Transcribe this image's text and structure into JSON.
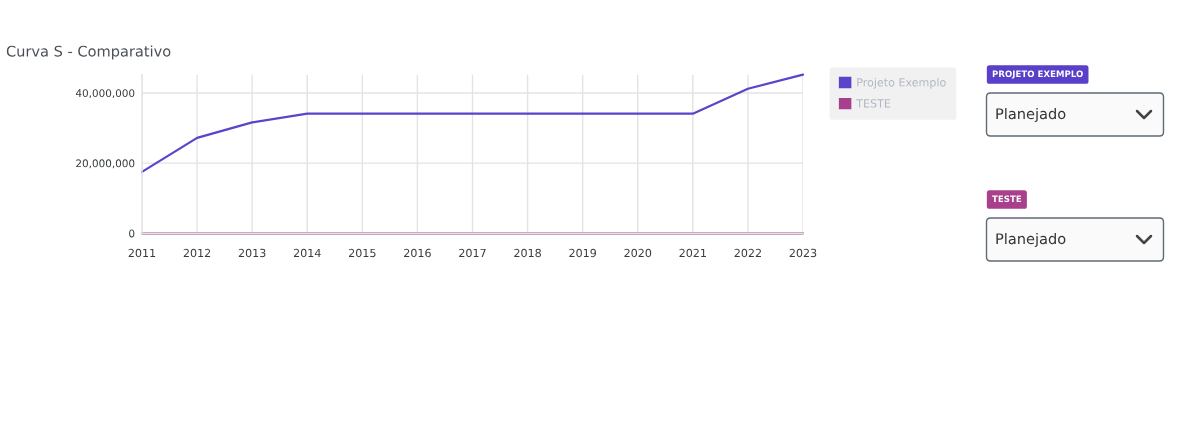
{
  "chart_data": [
    {
      "type": "line",
      "title": "Curva S - Comparativo",
      "categories": [
        "2011",
        "2012",
        "2013",
        "2014",
        "2015",
        "2016",
        "2017",
        "2018",
        "2019",
        "2020",
        "2021",
        "2022",
        "2023"
      ],
      "series": [
        {
          "name": "Projeto Exemplo",
          "color": "#5b44c9",
          "values": [
            17500000,
            27200000,
            31600000,
            34100000,
            34100000,
            34100000,
            34100000,
            34100000,
            34100000,
            34100000,
            34100000,
            41200000,
            45200000
          ]
        },
        {
          "name": "TESTE",
          "color": "#a6408e",
          "values": [
            0,
            0,
            0,
            0,
            0,
            0,
            0,
            0,
            0,
            0,
            0,
            0,
            0
          ]
        }
      ],
      "ylim": [
        0,
        45200000
      ],
      "yticks": [
        0,
        {
          "value": 20000000,
          "label": "20,000,000"
        },
        {
          "value": 40000000,
          "label": "40,000,000"
        }
      ],
      "grid": true,
      "legend": "top right"
    },
    {
      "type": "other",
      "annotations": [
        "PROJETO EXEMPLO",
        "Planejado",
        "TESTE",
        "Planejado"
      ],
      "colors": [
        "#5a40c8",
        null,
        "#a8408c",
        null
      ]
    }
  ]
}
